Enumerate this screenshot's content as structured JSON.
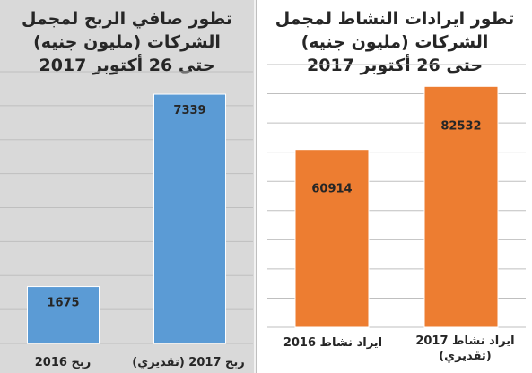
{
  "colors": {
    "left_bar": "#5b9bd5",
    "right_bar": "#ed7d31",
    "left_bg": "#d9d9d9",
    "right_bg": "#ffffff",
    "grid": "#bfbfbf"
  },
  "chart_data": [
    {
      "type": "bar",
      "title_lines": [
        "تطور صافي الربح لمجمل",
        "الشركات (مليون جنيه)",
        "حتى 26 أكتوبر 2017"
      ],
      "categories": [
        "ربح 2016",
        "ربح 2017 (تقديري)"
      ],
      "values": [
        1675,
        7339
      ],
      "data_labels": [
        "1675",
        "7339"
      ],
      "ylim": [
        0,
        8000
      ],
      "grid": true,
      "legend": "none"
    },
    {
      "type": "bar",
      "title_lines": [
        "تطور ايرادات النشاط لمجمل",
        "الشركات (مليون جنيه)",
        "حتى 26 أكتوبر 2017"
      ],
      "categories": [
        "ايراد نشاط 2016",
        "ايراد نشاط 2017\n(تقديري)"
      ],
      "values": [
        60914,
        82532
      ],
      "data_labels": [
        "60914",
        "82532"
      ],
      "ylim": [
        0,
        90000
      ],
      "grid": true,
      "legend": "none"
    }
  ]
}
